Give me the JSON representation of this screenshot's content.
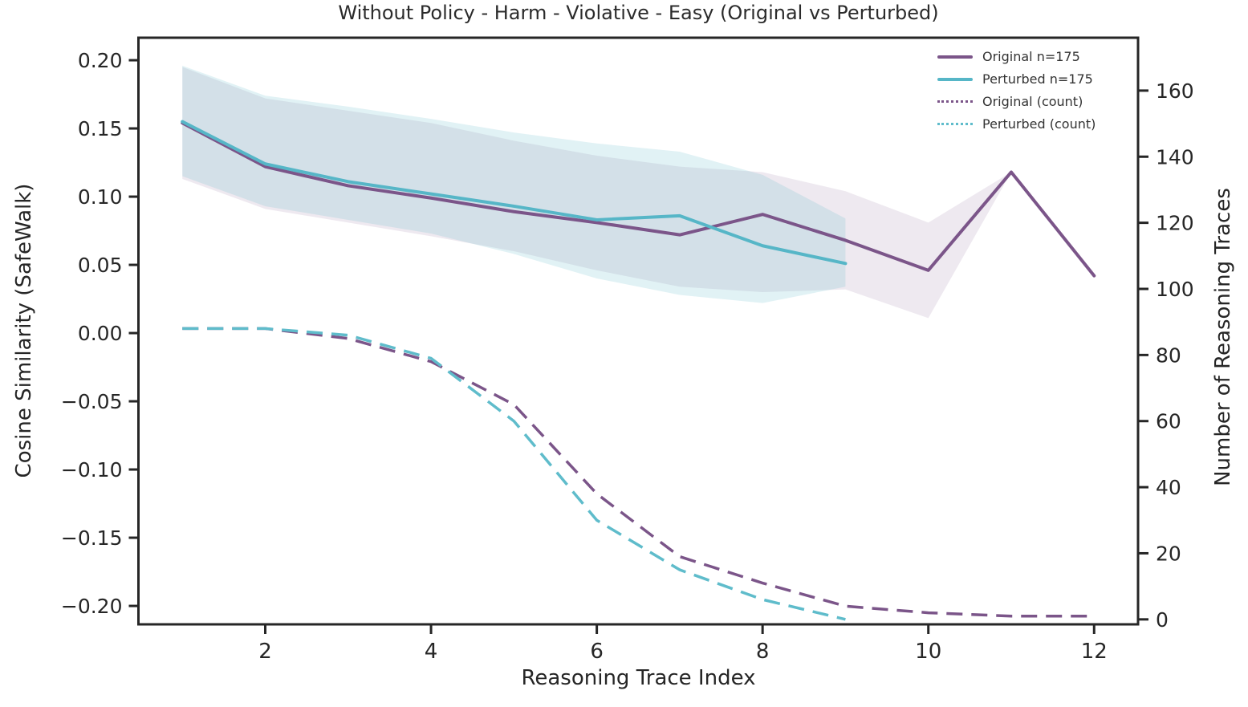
{
  "chart_data": {
    "type": "line",
    "title": "Without Policy - Harm - Violative - Easy (Original vs Perturbed)",
    "xlabel": "Reasoning Trace Index",
    "ylabel_left": "Cosine Similarity (SafeWalk)",
    "ylabel_right": "Number of Reasoning Traces",
    "grid": false,
    "legend_position": "upper right",
    "xlim": [
      0.47,
      12.53
    ],
    "ylim_left": [
      -0.2135,
      0.2165
    ],
    "ylim_right": [
      -1.5,
      176
    ],
    "x_tick_values": [
      2,
      4,
      6,
      8,
      10,
      12
    ],
    "x_tick_labels": [
      "2",
      "4",
      "6",
      "8",
      "10",
      "12"
    ],
    "y_left_tick_values": [
      0.2,
      0.15,
      0.1,
      0.05,
      0.0,
      -0.05,
      -0.1,
      -0.15,
      -0.2
    ],
    "y_left_tick_labels": [
      "0.20",
      "0.15",
      "0.10",
      "0.05",
      "0.00",
      "−0.05",
      "−0.10",
      "−0.15",
      "−0.20"
    ],
    "y_right_tick_values": [
      160,
      140,
      120,
      100,
      80,
      60,
      40,
      20,
      0
    ],
    "y_right_tick_labels": [
      "160",
      "140",
      "120",
      "100",
      "80",
      "60",
      "40",
      "20",
      "0"
    ],
    "colors": {
      "original": "#7b5589",
      "perturbed": "#56b6c7",
      "perturbed_count": "#5fbccb",
      "original_band_fill": "rgba(123,85,137,0.13)",
      "perturbed_band_fill": "rgba(86,182,199,0.18)",
      "axis_text": "#262626",
      "spine": "#262626"
    },
    "series": [
      {
        "name": "Original n=175",
        "axis": "left",
        "line_style": "solid",
        "legend_style": "solid",
        "color_key": "original",
        "x": [
          1,
          2,
          3,
          4,
          5,
          6,
          7,
          8,
          9,
          10,
          11,
          12
        ],
        "y": [
          0.154,
          0.122,
          0.108,
          0.099,
          0.089,
          0.081,
          0.072,
          0.087,
          0.068,
          0.046,
          0.118,
          0.042
        ],
        "band": {
          "x": [
            1,
            2,
            3,
            4,
            5,
            6,
            7,
            8,
            9,
            10,
            11
          ],
          "upper": [
            0.195,
            0.172,
            0.163,
            0.154,
            0.141,
            0.13,
            0.122,
            0.118,
            0.104,
            0.081,
            0.118
          ],
          "lower": [
            0.113,
            0.091,
            0.081,
            0.071,
            0.06,
            0.046,
            0.034,
            0.03,
            0.032,
            0.011,
            0.118
          ]
        }
      },
      {
        "name": "Perturbed n=175",
        "axis": "left",
        "line_style": "solid",
        "legend_style": "solid",
        "color_key": "perturbed",
        "x": [
          1,
          2,
          3,
          4,
          5,
          6,
          7,
          8,
          9
        ],
        "y": [
          0.155,
          0.124,
          0.111,
          0.102,
          0.093,
          0.083,
          0.086,
          0.064,
          0.051
        ],
        "band": {
          "x": [
            1,
            2,
            3,
            4,
            5,
            6,
            7,
            8,
            9
          ],
          "upper": [
            0.196,
            0.174,
            0.166,
            0.157,
            0.147,
            0.139,
            0.133,
            0.116,
            0.084
          ],
          "lower": [
            0.115,
            0.093,
            0.083,
            0.073,
            0.058,
            0.04,
            0.028,
            0.022,
            0.034
          ]
        }
      },
      {
        "name": "Original (count)",
        "axis": "right",
        "line_style": "dashed",
        "legend_style": "dotted",
        "color_key": "original",
        "x": [
          1,
          2,
          3,
          4,
          5,
          6,
          7,
          8,
          9,
          10,
          11,
          12
        ],
        "y": [
          88,
          88,
          85,
          78,
          65,
          38,
          19,
          11,
          4,
          2,
          1,
          1
        ]
      },
      {
        "name": "Perturbed (count)",
        "axis": "right",
        "line_style": "dashed",
        "legend_style": "dotted",
        "color_key": "perturbed_count",
        "x": [
          1,
          2,
          3,
          4,
          5,
          6,
          7,
          8,
          9
        ],
        "y": [
          88,
          88,
          86,
          79,
          60,
          30,
          15,
          6,
          0
        ]
      }
    ]
  }
}
